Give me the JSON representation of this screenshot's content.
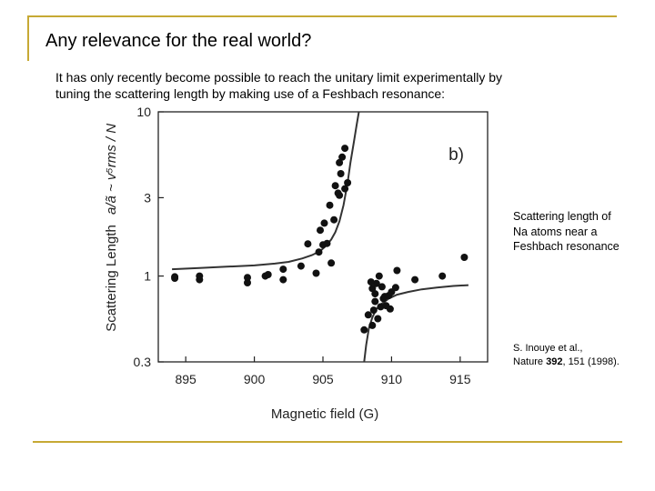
{
  "slide": {
    "title": "Any relevance for the real world?",
    "body_line1": "It has only recently become possible to reach the unitary limit experimentally by",
    "body_line2": "tuning the scattering length by making use of a Feshbach resonance:",
    "side_note_line1": "Scattering length of",
    "side_note_line2": "Na atoms near a",
    "side_note_line3": "Feshbach resonance",
    "citation_authors": "S. Inouye et al.,",
    "citation_journal": "Nature",
    "citation_volume": "392",
    "citation_rest": ", 151 (1998).",
    "accent_color": "#c6a934"
  },
  "chart_data": {
    "type": "scatter",
    "panel_label": "b)",
    "xlabel": "Magnetic field (G)",
    "ylabel": "Scattering Length",
    "ylabel_formula": "a/ã ~ v⁵rms / N",
    "xlim": [
      893,
      917
    ],
    "ylim": [
      0.3,
      10
    ],
    "y_scale": "log",
    "x_ticks": [
      895,
      900,
      905,
      910,
      915
    ],
    "x_tick_labels": [
      "895",
      "900",
      "905",
      "910",
      "915"
    ],
    "y_ticks": [
      0.3,
      1,
      3,
      10
    ],
    "y_tick_labels": [
      "0.3",
      "1",
      "3",
      "10"
    ],
    "points": [
      [
        894.2,
        0.97
      ],
      [
        894.2,
        0.99
      ],
      [
        896.0,
        0.95
      ],
      [
        896.0,
        1.0
      ],
      [
        899.5,
        0.91
      ],
      [
        899.5,
        0.98
      ],
      [
        900.8,
        1.0
      ],
      [
        901.0,
        1.02
      ],
      [
        902.1,
        0.95
      ],
      [
        902.1,
        1.1
      ],
      [
        903.4,
        1.15
      ],
      [
        903.9,
        1.57
      ],
      [
        904.5,
        1.04
      ],
      [
        904.7,
        1.4
      ],
      [
        905.0,
        1.55
      ],
      [
        905.3,
        1.58
      ],
      [
        904.8,
        1.9
      ],
      [
        905.6,
        1.2
      ],
      [
        905.1,
        2.1
      ],
      [
        905.5,
        2.7
      ],
      [
        905.8,
        2.2
      ],
      [
        906.1,
        3.2
      ],
      [
        905.9,
        3.55
      ],
      [
        906.2,
        3.1
      ],
      [
        906.3,
        4.2
      ],
      [
        906.4,
        5.3
      ],
      [
        906.6,
        6.0
      ],
      [
        906.2,
        4.9
      ],
      [
        906.8,
        3.7
      ],
      [
        906.6,
        3.4
      ],
      [
        908.0,
        0.47
      ],
      [
        908.3,
        0.58
      ],
      [
        908.6,
        0.5
      ],
      [
        908.7,
        0.62
      ],
      [
        908.8,
        0.7
      ],
      [
        908.8,
        0.78
      ],
      [
        908.6,
        0.84
      ],
      [
        908.9,
        0.9
      ],
      [
        909.2,
        0.65
      ],
      [
        909.4,
        0.73
      ],
      [
        909.5,
        0.75
      ],
      [
        909.8,
        0.76
      ],
      [
        909.9,
        0.63
      ],
      [
        910.0,
        0.8
      ],
      [
        910.4,
        1.08
      ],
      [
        910.3,
        0.85
      ],
      [
        911.7,
        0.95
      ],
      [
        913.7,
        1.0
      ],
      [
        915.3,
        1.3
      ],
      [
        909.0,
        0.55
      ],
      [
        909.3,
        0.86
      ],
      [
        909.1,
        1.0
      ],
      [
        908.5,
        0.92
      ],
      [
        909.6,
        0.66
      ]
    ],
    "fit_curves": [
      {
        "x": [
          894.0,
          896.0,
          898.0,
          900.0,
          901.5,
          902.5,
          903.5,
          904.2,
          904.8,
          905.2,
          905.6,
          905.9,
          906.2,
          906.5,
          906.8,
          907.0,
          907.25,
          907.45,
          907.62
        ],
        "y": [
          1.1,
          1.12,
          1.14,
          1.16,
          1.19,
          1.22,
          1.28,
          1.34,
          1.42,
          1.52,
          1.67,
          1.85,
          2.15,
          2.7,
          3.7,
          4.9,
          6.5,
          8.3,
          10.0
        ]
      },
      {
        "x": [
          908.0,
          908.15,
          908.35,
          908.6,
          908.9,
          909.3,
          909.8,
          910.4,
          911.2,
          912.2,
          913.3,
          914.5,
          915.6
        ],
        "y": [
          0.3,
          0.38,
          0.48,
          0.56,
          0.63,
          0.68,
          0.73,
          0.77,
          0.8,
          0.83,
          0.85,
          0.87,
          0.88
        ]
      }
    ],
    "marker_color": "#111111",
    "line_color": "#333333"
  }
}
